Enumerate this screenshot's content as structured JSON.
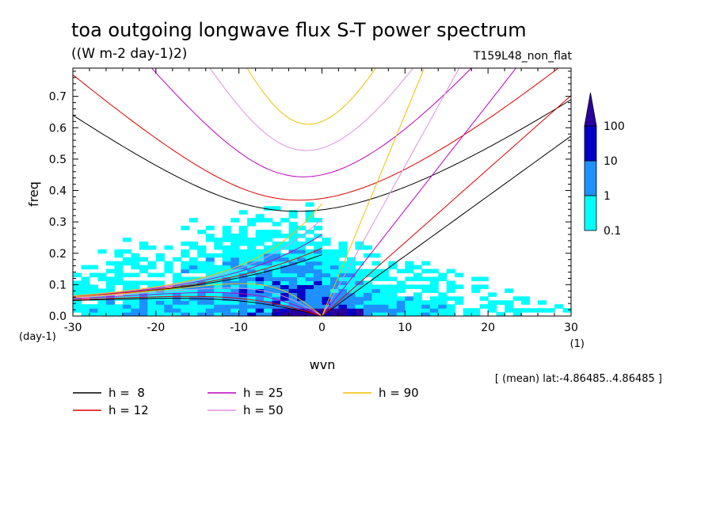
{
  "chart_data": {
    "type": "heatmap",
    "title": "toa outgoing longwave flux S-T power spectrum",
    "units": "((W m-2 day-1)2)",
    "experiment": "T159L48_non_flat",
    "xlabel": "wvn",
    "ylabel": "freq",
    "x_unit": "(1)",
    "y_unit": "(day-1)",
    "xlim": [
      -30,
      30
    ],
    "ylim": [
      0,
      0.79
    ],
    "x_ticks": [
      "-30",
      "-20",
      "-10",
      "0",
      "10",
      "20",
      "30"
    ],
    "x_tick_values": [
      -30,
      -20,
      -10,
      0,
      10,
      20,
      30
    ],
    "y_ticks": [
      "0.0",
      "0.1",
      "0.2",
      "0.3",
      "0.4",
      "0.5",
      "0.6",
      "0.7"
    ],
    "y_tick_values": [
      0,
      0.1,
      0.2,
      0.3,
      0.4,
      0.5,
      0.6,
      0.7
    ],
    "mean_note": "[ (mean) lat:-4.86485..4.86485 ]",
    "colorbar": {
      "levels": [
        "0.1",
        "1",
        "10",
        "100"
      ],
      "colors": [
        "#00ffff",
        "#1e90ff",
        "#0000c8",
        "#2b00a0"
      ]
    },
    "dispersion_curves": [
      {
        "label": "h =  8",
        "h": 8,
        "color": "#000000"
      },
      {
        "label": "h = 12",
        "h": 12,
        "color": "#e00000"
      },
      {
        "label": "h = 25",
        "h": 25,
        "color": "#c000c0"
      },
      {
        "label": "h = 50",
        "h": 50,
        "color": "#e090e0"
      },
      {
        "label": "h = 90",
        "h": 90,
        "color": "#f0c000"
      }
    ]
  }
}
